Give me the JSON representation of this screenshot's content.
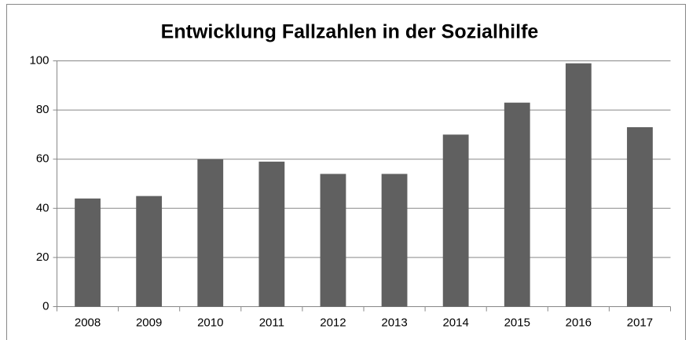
{
  "chart_data": {
    "type": "bar",
    "title": "Entwicklung Fallzahlen in der Sozialhilfe",
    "categories": [
      "2008",
      "2009",
      "2010",
      "2011",
      "2012",
      "2013",
      "2014",
      "2015",
      "2016",
      "2017"
    ],
    "values": [
      44,
      45,
      60,
      59,
      54,
      54,
      70,
      83,
      99,
      73
    ],
    "color": "#606060",
    "ylim": [
      0,
      100
    ],
    "yticks": [
      0,
      20,
      40,
      60,
      80,
      100
    ],
    "grid": true
  }
}
